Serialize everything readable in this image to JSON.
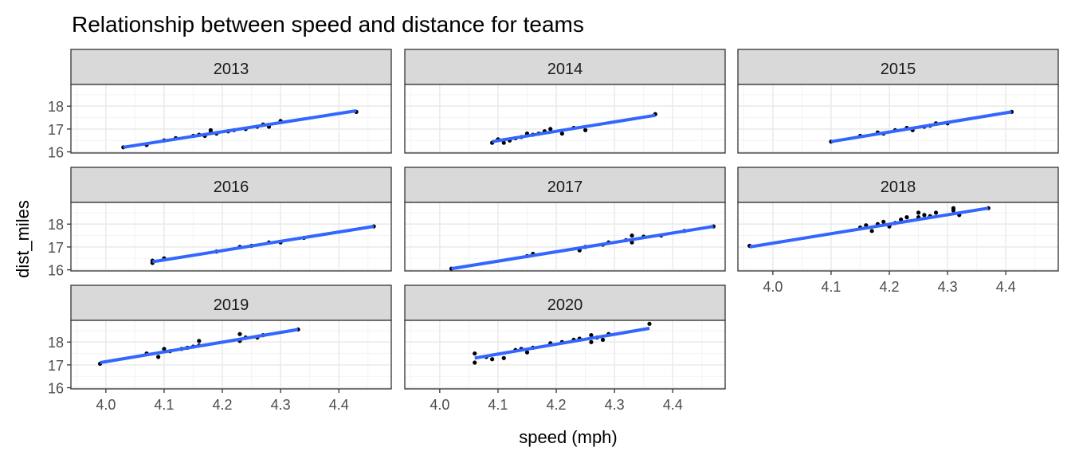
{
  "chart_data": {
    "type": "scatter",
    "title": "Relationship between speed and distance for teams",
    "xlabel": "speed (mph)",
    "ylabel": "dist_miles",
    "xlim": [
      3.94,
      4.49
    ],
    "ylim": [
      15.95,
      18.95
    ],
    "x_ticks": [
      "4.0",
      "4.1",
      "4.2",
      "4.3",
      "4.4"
    ],
    "y_ticks": [
      "16",
      "17",
      "18"
    ],
    "grid": true,
    "colors": {
      "points": "#000000",
      "fit_line": "#3366FF",
      "strip_bg": "#D9D9D9",
      "panel_border": "#333333",
      "grid": "#EBEBEB"
    },
    "panels": [
      {
        "label": "2013",
        "points": [
          [
            4.03,
            16.2
          ],
          [
            4.07,
            16.3
          ],
          [
            4.1,
            16.5
          ],
          [
            4.12,
            16.6
          ],
          [
            4.15,
            16.7
          ],
          [
            4.16,
            16.75
          ],
          [
            4.17,
            16.7
          ],
          [
            4.18,
            16.85
          ],
          [
            4.18,
            16.95
          ],
          [
            4.19,
            16.8
          ],
          [
            4.21,
            16.9
          ],
          [
            4.22,
            16.95
          ],
          [
            4.24,
            17.0
          ],
          [
            4.26,
            17.1
          ],
          [
            4.27,
            17.2
          ],
          [
            4.28,
            17.1
          ],
          [
            4.3,
            17.35
          ],
          [
            4.43,
            17.75
          ]
        ],
        "fit": [
          [
            4.03,
            16.2
          ],
          [
            4.43,
            17.8
          ]
        ]
      },
      {
        "label": "2014",
        "points": [
          [
            4.09,
            16.4
          ],
          [
            4.1,
            16.55
          ],
          [
            4.11,
            16.4
          ],
          [
            4.12,
            16.5
          ],
          [
            4.13,
            16.6
          ],
          [
            4.14,
            16.65
          ],
          [
            4.15,
            16.8
          ],
          [
            4.16,
            16.75
          ],
          [
            4.17,
            16.8
          ],
          [
            4.18,
            16.9
          ],
          [
            4.19,
            17.0
          ],
          [
            4.21,
            16.8
          ],
          [
            4.23,
            17.05
          ],
          [
            4.25,
            16.95
          ],
          [
            4.37,
            17.65
          ]
        ],
        "fit": [
          [
            4.09,
            16.45
          ],
          [
            4.37,
            17.6
          ]
        ]
      },
      {
        "label": "2015",
        "points": [
          [
            4.1,
            16.45
          ],
          [
            4.15,
            16.7
          ],
          [
            4.18,
            16.85
          ],
          [
            4.19,
            16.8
          ],
          [
            4.21,
            16.95
          ],
          [
            4.23,
            17.05
          ],
          [
            4.24,
            16.95
          ],
          [
            4.26,
            17.1
          ],
          [
            4.27,
            17.15
          ],
          [
            4.28,
            17.25
          ],
          [
            4.3,
            17.25
          ],
          [
            4.41,
            17.75
          ]
        ],
        "fit": [
          [
            4.1,
            16.45
          ],
          [
            4.41,
            17.75
          ]
        ]
      },
      {
        "label": "2016",
        "points": [
          [
            4.08,
            16.3
          ],
          [
            4.08,
            16.4
          ],
          [
            4.1,
            16.5
          ],
          [
            4.19,
            16.8
          ],
          [
            4.23,
            17.0
          ],
          [
            4.25,
            17.05
          ],
          [
            4.28,
            17.2
          ],
          [
            4.3,
            17.2
          ],
          [
            4.34,
            17.4
          ],
          [
            4.46,
            17.9
          ]
        ],
        "fit": [
          [
            4.08,
            16.35
          ],
          [
            4.46,
            17.9
          ]
        ]
      },
      {
        "label": "2017",
        "points": [
          [
            4.02,
            16.05
          ],
          [
            4.15,
            16.6
          ],
          [
            4.16,
            16.7
          ],
          [
            4.24,
            16.85
          ],
          [
            4.25,
            17.0
          ],
          [
            4.28,
            17.1
          ],
          [
            4.29,
            17.2
          ],
          [
            4.32,
            17.3
          ],
          [
            4.33,
            17.2
          ],
          [
            4.33,
            17.5
          ],
          [
            4.35,
            17.45
          ],
          [
            4.38,
            17.5
          ],
          [
            4.42,
            17.7
          ],
          [
            4.47,
            17.9
          ]
        ],
        "fit": [
          [
            4.02,
            16.05
          ],
          [
            4.47,
            17.9
          ]
        ]
      },
      {
        "label": "2018",
        "points": [
          [
            3.96,
            17.05
          ],
          [
            4.15,
            17.85
          ],
          [
            4.16,
            17.95
          ],
          [
            4.17,
            17.7
          ],
          [
            4.18,
            18.0
          ],
          [
            4.19,
            18.1
          ],
          [
            4.2,
            17.9
          ],
          [
            4.21,
            18.05
          ],
          [
            4.22,
            18.2
          ],
          [
            4.23,
            18.3
          ],
          [
            4.25,
            18.3
          ],
          [
            4.25,
            18.5
          ],
          [
            4.26,
            18.4
          ],
          [
            4.27,
            18.35
          ],
          [
            4.28,
            18.5
          ],
          [
            4.31,
            18.6
          ],
          [
            4.31,
            18.7
          ],
          [
            4.32,
            18.4
          ],
          [
            4.37,
            18.7
          ]
        ],
        "fit": [
          [
            3.96,
            17.0
          ],
          [
            4.37,
            18.7
          ]
        ]
      },
      {
        "label": "2019",
        "points": [
          [
            3.99,
            17.05
          ],
          [
            4.07,
            17.5
          ],
          [
            4.09,
            17.35
          ],
          [
            4.1,
            17.7
          ],
          [
            4.11,
            17.6
          ],
          [
            4.13,
            17.7
          ],
          [
            4.14,
            17.75
          ],
          [
            4.15,
            17.8
          ],
          [
            4.16,
            17.85
          ],
          [
            4.16,
            18.05
          ],
          [
            4.23,
            18.05
          ],
          [
            4.23,
            18.35
          ],
          [
            4.24,
            18.2
          ],
          [
            4.26,
            18.2
          ],
          [
            4.27,
            18.3
          ],
          [
            4.33,
            18.55
          ]
        ],
        "fit": [
          [
            3.99,
            17.1
          ],
          [
            4.33,
            18.55
          ]
        ]
      },
      {
        "label": "2020",
        "points": [
          [
            4.06,
            17.1
          ],
          [
            4.06,
            17.5
          ],
          [
            4.08,
            17.35
          ],
          [
            4.09,
            17.25
          ],
          [
            4.11,
            17.3
          ],
          [
            4.13,
            17.65
          ],
          [
            4.14,
            17.7
          ],
          [
            4.15,
            17.55
          ],
          [
            4.16,
            17.75
          ],
          [
            4.19,
            17.95
          ],
          [
            4.21,
            18.0
          ],
          [
            4.23,
            18.1
          ],
          [
            4.24,
            18.15
          ],
          [
            4.26,
            18.0
          ],
          [
            4.26,
            18.3
          ],
          [
            4.27,
            18.2
          ],
          [
            4.28,
            18.1
          ],
          [
            4.29,
            18.35
          ],
          [
            4.36,
            18.8
          ]
        ],
        "fit": [
          [
            4.06,
            17.3
          ],
          [
            4.36,
            18.6
          ]
        ]
      }
    ]
  }
}
